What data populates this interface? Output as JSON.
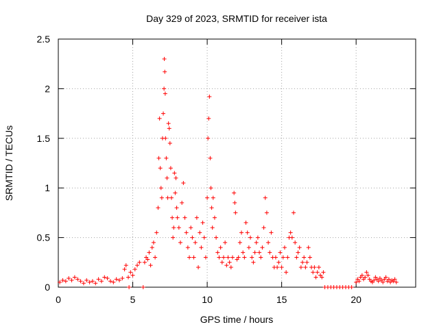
{
  "chart_data": {
    "type": "scatter",
    "title": "Day 329 of 2023, SRMTID for receiver ista",
    "xlabel": "GPS time / hours",
    "ylabel": "SRMTID / TECUs",
    "xlim": [
      0,
      24
    ],
    "ylim": [
      0,
      2.5
    ],
    "grid": true,
    "marker": "+",
    "colors": {
      "series": "#ff0000",
      "grid": "#a0a0a0",
      "axis": "#000000"
    },
    "xticks": [
      {
        "value": 0,
        "label": "0"
      },
      {
        "value": 5,
        "label": "5"
      },
      {
        "value": 10,
        "label": "10"
      },
      {
        "value": 15,
        "label": "15"
      },
      {
        "value": 20,
        "label": "20"
      }
    ],
    "yticks": [
      {
        "value": 0,
        "label": "0"
      },
      {
        "value": 0.5,
        "label": "0.5"
      },
      {
        "value": 1,
        "label": "1"
      },
      {
        "value": 1.5,
        "label": "1.5"
      },
      {
        "value": 2,
        "label": "2"
      },
      {
        "value": 2.5,
        "label": "2.5"
      }
    ],
    "series": [
      {
        "name": "SRMTID",
        "points": [
          [
            0.1,
            0.05
          ],
          [
            0.3,
            0.07
          ],
          [
            0.5,
            0.06
          ],
          [
            0.7,
            0.09
          ],
          [
            0.9,
            0.07
          ],
          [
            1.1,
            0.1
          ],
          [
            1.3,
            0.08
          ],
          [
            1.5,
            0.06
          ],
          [
            1.7,
            0.04
          ],
          [
            1.9,
            0.07
          ],
          [
            2.1,
            0.05
          ],
          [
            2.3,
            0.06
          ],
          [
            2.5,
            0.04
          ],
          [
            2.7,
            0.08
          ],
          [
            2.9,
            0.06
          ],
          [
            3.1,
            0.1
          ],
          [
            3.3,
            0.09
          ],
          [
            3.5,
            0.06
          ],
          [
            3.7,
            0.05
          ],
          [
            3.9,
            0.08
          ],
          [
            4.1,
            0.07
          ],
          [
            4.3,
            0.09
          ],
          [
            4.45,
            0.18
          ],
          [
            4.55,
            0.22
          ],
          [
            4.7,
            0.1
          ],
          [
            4.85,
            0.15
          ],
          [
            5.0,
            0.12
          ],
          [
            5.15,
            0.18
          ],
          [
            5.3,
            0.22
          ],
          [
            5.45,
            0.25
          ],
          [
            5.7,
            0.0
          ],
          [
            4.75,
            0.0
          ],
          [
            5.8,
            0.25
          ],
          [
            5.9,
            0.3
          ],
          [
            6.0,
            0.28
          ],
          [
            6.1,
            0.35
          ],
          [
            6.2,
            0.22
          ],
          [
            6.3,
            0.4
          ],
          [
            6.4,
            0.45
          ],
          [
            6.5,
            0.3
          ],
          [
            6.6,
            0.55
          ],
          [
            6.7,
            0.8
          ],
          [
            6.75,
            1.3
          ],
          [
            6.8,
            1.7
          ],
          [
            6.85,
            1.2
          ],
          [
            6.9,
            1.0
          ],
          [
            6.95,
            0.9
          ],
          [
            7.0,
            1.5
          ],
          [
            7.05,
            1.75
          ],
          [
            7.1,
            2.0
          ],
          [
            7.12,
            2.3
          ],
          [
            7.15,
            2.17
          ],
          [
            7.18,
            1.95
          ],
          [
            7.2,
            1.5
          ],
          [
            7.25,
            1.3
          ],
          [
            7.3,
            1.1
          ],
          [
            7.35,
            0.9
          ],
          [
            7.4,
            1.65
          ],
          [
            7.45,
            1.6
          ],
          [
            7.5,
            1.45
          ],
          [
            7.55,
            1.2
          ],
          [
            7.6,
            0.9
          ],
          [
            7.65,
            0.7
          ],
          [
            7.7,
            0.5
          ],
          [
            7.75,
            0.6
          ],
          [
            7.8,
            1.15
          ],
          [
            7.85,
            0.95
          ],
          [
            7.9,
            1.1
          ],
          [
            7.95,
            0.8
          ],
          [
            8.0,
            0.7
          ],
          [
            8.1,
            0.6
          ],
          [
            8.2,
            0.45
          ],
          [
            8.3,
            0.85
          ],
          [
            8.4,
            1.05
          ],
          [
            8.5,
            0.7
          ],
          [
            8.6,
            0.55
          ],
          [
            8.7,
            0.4
          ],
          [
            8.8,
            0.3
          ],
          [
            8.9,
            0.6
          ],
          [
            9.0,
            0.5
          ],
          [
            9.1,
            0.3
          ],
          [
            9.2,
            0.45
          ],
          [
            9.3,
            0.7
          ],
          [
            9.4,
            0.2
          ],
          [
            9.5,
            0.55
          ],
          [
            9.6,
            0.4
          ],
          [
            9.7,
            0.65
          ],
          [
            9.8,
            0.5
          ],
          [
            9.9,
            0.3
          ],
          [
            10.0,
            0.9
          ],
          [
            10.05,
            1.5
          ],
          [
            10.1,
            1.7
          ],
          [
            10.15,
            1.92
          ],
          [
            10.2,
            1.3
          ],
          [
            10.25,
            1.0
          ],
          [
            10.3,
            0.8
          ],
          [
            10.35,
            0.6
          ],
          [
            10.4,
            0.9
          ],
          [
            10.5,
            0.7
          ],
          [
            10.6,
            0.5
          ],
          [
            10.7,
            0.35
          ],
          [
            10.8,
            0.3
          ],
          [
            10.9,
            0.4
          ],
          [
            11.0,
            0.25
          ],
          [
            11.1,
            0.3
          ],
          [
            11.2,
            0.45
          ],
          [
            11.3,
            0.22
          ],
          [
            11.4,
            0.3
          ],
          [
            11.5,
            0.25
          ],
          [
            11.6,
            0.2
          ],
          [
            11.7,
            0.3
          ],
          [
            11.8,
            0.95
          ],
          [
            11.85,
            0.85
          ],
          [
            11.9,
            0.75
          ],
          [
            12.0,
            0.28
          ],
          [
            12.1,
            0.3
          ],
          [
            12.2,
            0.45
          ],
          [
            12.3,
            0.55
          ],
          [
            12.4,
            0.35
          ],
          [
            12.5,
            0.3
          ],
          [
            12.6,
            0.65
          ],
          [
            12.7,
            0.55
          ],
          [
            12.8,
            0.4
          ],
          [
            12.9,
            0.5
          ],
          [
            13.0,
            0.3
          ],
          [
            13.1,
            0.25
          ],
          [
            13.2,
            0.35
          ],
          [
            13.3,
            0.45
          ],
          [
            13.4,
            0.5
          ],
          [
            13.5,
            0.35
          ],
          [
            13.6,
            0.3
          ],
          [
            13.7,
            0.4
          ],
          [
            13.8,
            0.6
          ],
          [
            13.9,
            0.9
          ],
          [
            14.0,
            0.75
          ],
          [
            14.1,
            0.45
          ],
          [
            14.2,
            0.35
          ],
          [
            14.3,
            0.55
          ],
          [
            14.4,
            0.3
          ],
          [
            14.5,
            0.2
          ],
          [
            14.6,
            0.3
          ],
          [
            14.7,
            0.2
          ],
          [
            14.8,
            0.25
          ],
          [
            14.9,
            0.35
          ],
          [
            15.0,
            0.2
          ],
          [
            15.1,
            0.3
          ],
          [
            15.2,
            0.4
          ],
          [
            15.3,
            0.15
          ],
          [
            15.4,
            0.3
          ],
          [
            15.5,
            0.5
          ],
          [
            15.6,
            0.55
          ],
          [
            15.7,
            0.5
          ],
          [
            15.8,
            0.75
          ],
          [
            15.9,
            0.45
          ],
          [
            16.0,
            0.3
          ],
          [
            16.1,
            0.35
          ],
          [
            16.2,
            0.4
          ],
          [
            16.3,
            0.2
          ],
          [
            16.4,
            0.25
          ],
          [
            16.5,
            0.3
          ],
          [
            16.6,
            0.2
          ],
          [
            16.7,
            0.25
          ],
          [
            16.8,
            0.4
          ],
          [
            16.9,
            0.3
          ],
          [
            17.0,
            0.2
          ],
          [
            17.1,
            0.15
          ],
          [
            17.2,
            0.2
          ],
          [
            17.3,
            0.1
          ],
          [
            17.4,
            0.15
          ],
          [
            17.5,
            0.2
          ],
          [
            17.6,
            0.12
          ],
          [
            17.7,
            0.1
          ],
          [
            17.8,
            0.15
          ],
          [
            17.9,
            0.0
          ],
          [
            18.1,
            0.0
          ],
          [
            18.3,
            0.0
          ],
          [
            18.5,
            0.0
          ],
          [
            18.7,
            0.0
          ],
          [
            18.9,
            0.0
          ],
          [
            19.1,
            0.0
          ],
          [
            19.3,
            0.0
          ],
          [
            19.5,
            0.0
          ],
          [
            19.7,
            0.0
          ],
          [
            20.0,
            0.05
          ],
          [
            20.1,
            0.08
          ],
          [
            20.2,
            0.06
          ],
          [
            20.3,
            0.1
          ],
          [
            20.4,
            0.12
          ],
          [
            20.5,
            0.08
          ],
          [
            20.6,
            0.1
          ],
          [
            20.7,
            0.15
          ],
          [
            20.8,
            0.12
          ],
          [
            20.9,
            0.08
          ],
          [
            21.0,
            0.06
          ],
          [
            21.1,
            0.05
          ],
          [
            21.2,
            0.07
          ],
          [
            21.3,
            0.1
          ],
          [
            21.4,
            0.08
          ],
          [
            21.5,
            0.06
          ],
          [
            21.6,
            0.09
          ],
          [
            21.7,
            0.07
          ],
          [
            21.8,
            0.05
          ],
          [
            21.9,
            0.08
          ],
          [
            22.0,
            0.1
          ],
          [
            22.1,
            0.06
          ],
          [
            22.2,
            0.08
          ],
          [
            22.3,
            0.05
          ],
          [
            22.4,
            0.07
          ],
          [
            22.5,
            0.06
          ],
          [
            22.6,
            0.08
          ],
          [
            22.7,
            0.05
          ]
        ]
      }
    ]
  }
}
